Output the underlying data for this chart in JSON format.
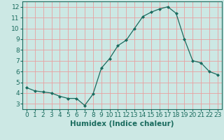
{
  "x": [
    0,
    1,
    2,
    3,
    4,
    5,
    6,
    7,
    8,
    9,
    10,
    11,
    12,
    13,
    14,
    15,
    16,
    17,
    18,
    19,
    20,
    21,
    22,
    23
  ],
  "y": [
    4.5,
    4.2,
    4.1,
    4.0,
    3.7,
    3.5,
    3.5,
    2.85,
    3.9,
    6.3,
    7.2,
    8.4,
    8.9,
    10.0,
    11.1,
    11.5,
    11.8,
    12.0,
    11.4,
    9.0,
    7.0,
    6.8,
    6.0,
    5.7
  ],
  "line_color": "#1a6b5e",
  "marker": "D",
  "marker_size": 2.0,
  "bg_color": "#cce8e4",
  "grid_color": "#e8a0a0",
  "xlabel": "Humidex (Indice chaleur)",
  "xlabel_fontsize": 7.5,
  "tick_fontsize": 6.5,
  "xlim": [
    -0.5,
    23.5
  ],
  "ylim": [
    2.5,
    12.5
  ],
  "yticks": [
    3,
    4,
    5,
    6,
    7,
    8,
    9,
    10,
    11,
    12
  ],
  "xticks": [
    0,
    1,
    2,
    3,
    4,
    5,
    6,
    7,
    8,
    9,
    10,
    11,
    12,
    13,
    14,
    15,
    16,
    17,
    18,
    19,
    20,
    21,
    22,
    23
  ]
}
